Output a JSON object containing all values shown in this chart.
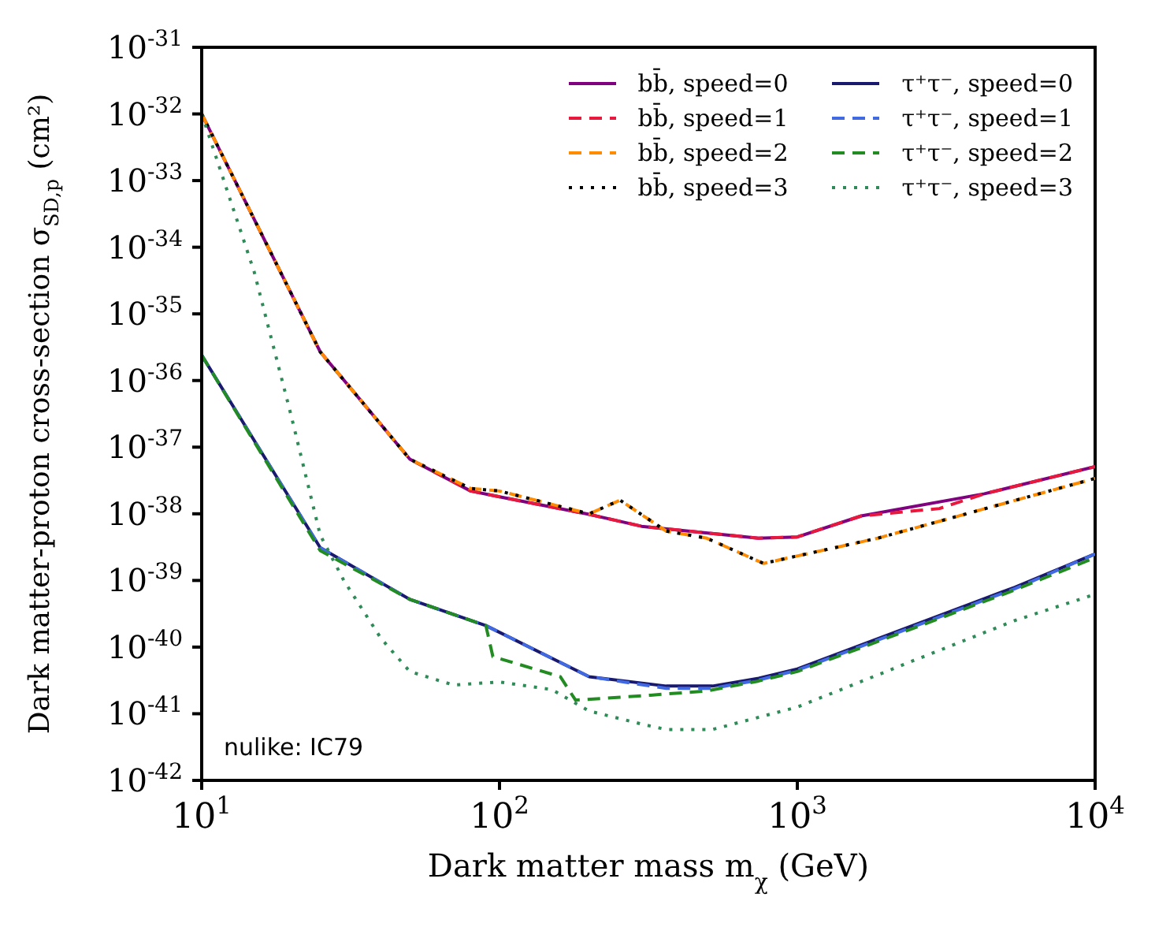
{
  "chart_data": {
    "type": "line",
    "xlabel": "Dark matter mass m$_{χ}$ (GeV)",
    "ylabel": "Dark matter-proton cross-section σ$_{SD,p}$ (cm²)",
    "annotations": [
      "nulike: IC79"
    ],
    "log": "xy",
    "legend": "top right",
    "marker": "none",
    "xlim": [
      10,
      10000
    ],
    "xticks": [
      {
        "value": 10,
        "label": "10$^{1}$"
      },
      {
        "value": 100,
        "label": "10$^{2}$"
      },
      {
        "value": 1000,
        "label": "10$^{3}$"
      },
      {
        "value": 10000,
        "label": "10$^{4}$"
      }
    ],
    "ylim": [
      1e-42,
      1e-31
    ],
    "yticks": [
      {
        "value": 1e-42,
        "label": "10$^{-42}$"
      },
      {
        "value": 1e-41,
        "label": "10$^{-41}$"
      },
      {
        "value": 1e-40,
        "label": "10$^{-40}$"
      },
      {
        "value": 1e-39,
        "label": "10$^{-39}$"
      },
      {
        "value": 1e-38,
        "label": "10$^{-38}$"
      },
      {
        "value": 1e-37,
        "label": "10$^{-37}$"
      },
      {
        "value": 1e-36,
        "label": "10$^{-36}$"
      },
      {
        "value": 1e-35,
        "label": "10$^{-35}$"
      },
      {
        "value": 1e-34,
        "label": "10$^{-34}$"
      },
      {
        "value": 1e-33,
        "label": "10$^{-33}$"
      },
      {
        "value": 1e-32,
        "label": "10$^{-32}$"
      },
      {
        "value": 1e-31,
        "label": "10$^{-31}$"
      }
    ],
    "series": [
      {
        "name": "bb̄, speed=0",
        "color": "#800080",
        "line_style": "solid",
        "x": [
          10,
          25,
          50,
          80,
          100,
          200,
          300,
          740,
          1000,
          1640,
          4250,
          10000
        ],
        "values": [
          1e-32,
          2.7e-36,
          6.6e-38,
          2.2e-38,
          1.8e-38,
          9.8e-39,
          6.5e-39,
          4.3e-39,
          4.5e-39,
          9.3e-39,
          2e-38,
          5.1e-38
        ]
      },
      {
        "name": "bb̄, speed=1",
        "color": "#e8193c",
        "line_style": "dashed",
        "x": [
          10,
          25,
          50,
          80,
          100,
          200,
          300,
          740,
          1000,
          1640,
          3000,
          4250,
          10000
        ],
        "values": [
          1e-32,
          2.7e-36,
          6.6e-38,
          2.2e-38,
          1.8e-38,
          9.8e-39,
          6.5e-39,
          4.3e-39,
          4.5e-39,
          9.3e-39,
          1.2e-38,
          2e-38,
          5.1e-38
        ]
      },
      {
        "name": "bb̄, speed=2",
        "color": "#ff8c00",
        "line_style": "dashed",
        "x": [
          10,
          25,
          50,
          80,
          100,
          200,
          254,
          363,
          497,
          770,
          1860,
          10000
        ],
        "values": [
          1e-32,
          2.7e-36,
          6.6e-38,
          2.4e-38,
          2.2e-38,
          1e-38,
          1.6e-38,
          5.5e-39,
          4.3e-39,
          1.8e-39,
          4.3e-39,
          3.4e-38
        ]
      },
      {
        "name": "bb̄, speed=3",
        "color": "#000000",
        "line_style": "dotted",
        "x": [
          10,
          25,
          50,
          80,
          100,
          200,
          254,
          363,
          497,
          770,
          1860,
          10000
        ],
        "values": [
          1e-32,
          2.7e-36,
          6.6e-38,
          2.4e-38,
          2.2e-38,
          1e-38,
          1.6e-38,
          5.5e-39,
          4.3e-39,
          1.8e-39,
          4.3e-39,
          3.4e-38
        ]
      },
      {
        "name": "τ⁺τ⁻, speed=0",
        "color": "#191970",
        "line_style": "solid",
        "x": [
          10,
          25,
          50,
          90,
          200,
          363,
          519,
          742,
          1000,
          2440,
          5370,
          10000
        ],
        "values": [
          2.4e-36,
          3.1e-39,
          5.2e-40,
          2.1e-40,
          3.6e-41,
          2.6e-41,
          2.6e-41,
          3.4e-41,
          4.7e-41,
          2.1e-40,
          7.9e-40,
          2.5e-39
        ]
      },
      {
        "name": "τ⁺τ⁻, speed=1",
        "color": "#4169e1",
        "line_style": "dashed",
        "x": [
          10,
          25,
          50,
          90,
          200,
          363,
          519,
          742,
          1000,
          2440,
          5370,
          10000
        ],
        "values": [
          2.4e-36,
          3.1e-39,
          5.2e-40,
          2.1e-40,
          3.6e-41,
          2.4e-41,
          2.4e-41,
          3.2e-41,
          4.5e-41,
          2e-40,
          7.5e-40,
          2.5e-39
        ]
      },
      {
        "name": "τ⁺τ⁻, speed=2",
        "color": "#228b22",
        "line_style": "dashed",
        "x": [
          10,
          25,
          50,
          90,
          95,
          160,
          180,
          322,
          497,
          742,
          1000,
          2440,
          5370,
          10000
        ],
        "values": [
          2.4e-36,
          2.8e-39,
          5.2e-40,
          2.1e-40,
          7.2e-41,
          3.6e-41,
          1.6e-41,
          1.9e-41,
          2.2e-41,
          3.1e-41,
          4.3e-41,
          1.9e-40,
          7.2e-40,
          2.2e-39
        ]
      },
      {
        "name": "τ⁺τ⁻, speed=3",
        "color": "#2e8b57",
        "line_style": "dotted",
        "x": [
          10,
          15,
          20,
          25,
          30,
          40,
          50,
          70,
          100,
          150,
          200,
          300,
          363,
          519,
          1000,
          2440,
          5370,
          10000
        ],
        "values": [
          1e-32,
          4.3e-35,
          2.9e-37,
          4.8e-39,
          1e-39,
          1.35e-40,
          4.3e-41,
          2.7e-41,
          3e-41,
          2.3e-41,
          1.1e-41,
          7e-42,
          5.8e-42,
          5.8e-42,
          1.26e-41,
          6.2e-41,
          2.5e-40,
          6.2e-40
        ]
      }
    ]
  }
}
